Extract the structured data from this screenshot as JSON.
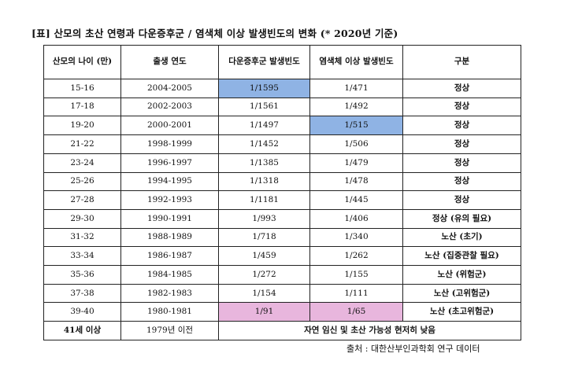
{
  "caption": "[표] 산모의 초산 연령과 다운증후군 / 염색체 이상 발생빈도의 변화 (* 2020년 기준)",
  "headers": [
    "산모의 나이 (만)",
    "출생 연도",
    "다운증후군 발생빈도",
    "염색체 이상 발생빈도",
    "구분"
  ],
  "rows": [
    {
      "age": "15-16",
      "year": "2004-2005",
      "down": "1/1595",
      "chrom": "1/471",
      "cat": "정상"
    },
    {
      "age": "17-18",
      "year": "2002-2003",
      "down": "1/1561",
      "chrom": "1/492",
      "cat": "정상"
    },
    {
      "age": "19-20",
      "year": "2000-2001",
      "down": "1/1497",
      "chrom": "1/515",
      "cat": "정상"
    },
    {
      "age": "21-22",
      "year": "1998-1999",
      "down": "1/1452",
      "chrom": "1/506",
      "cat": "정상"
    },
    {
      "age": "23-24",
      "year": "1996-1997",
      "down": "1/1385",
      "chrom": "1/479",
      "cat": "정상"
    },
    {
      "age": "25-26",
      "year": "1994-1995",
      "down": "1/1318",
      "chrom": "1/478",
      "cat": "정상"
    },
    {
      "age": "27-28",
      "year": "1992-1993",
      "down": "1/1181",
      "chrom": "1/445",
      "cat": "정상"
    },
    {
      "age": "29-30",
      "year": "1990-1991",
      "down": "1/993",
      "chrom": "1/406",
      "cat": "정상 (유의 필요)"
    },
    {
      "age": "31-32",
      "year": "1988-1989",
      "down": "1/718",
      "chrom": "1/340",
      "cat": "노산 (초기)"
    },
    {
      "age": "33-34",
      "year": "1986-1987",
      "down": "1/459",
      "chrom": "1/262",
      "cat": "노산 (집중관찰 필요)"
    },
    {
      "age": "35-36",
      "year": "1984-1985",
      "down": "1/272",
      "chrom": "1/155",
      "cat": "노산 (위험군)"
    },
    {
      "age": "37-38",
      "year": "1982-1983",
      "down": "1/154",
      "chrom": "1/111",
      "cat": "노산 (고위험군)"
    },
    {
      "age": "39-40",
      "year": "1980-1981",
      "down": "1/91",
      "chrom": "1/65",
      "cat": "노산 (초고위험군)"
    }
  ],
  "last_row": {
    "age": "41세 이상",
    "year": "1979년 이전",
    "note": "자연 임신 및 초산 가능성 현저히 낮음"
  },
  "highlights": {
    "blue_color": "#8fb3e4",
    "pink_color": "#e8b6dd"
  },
  "source": "출처 : 대한산부인과학회 연구 데이터"
}
